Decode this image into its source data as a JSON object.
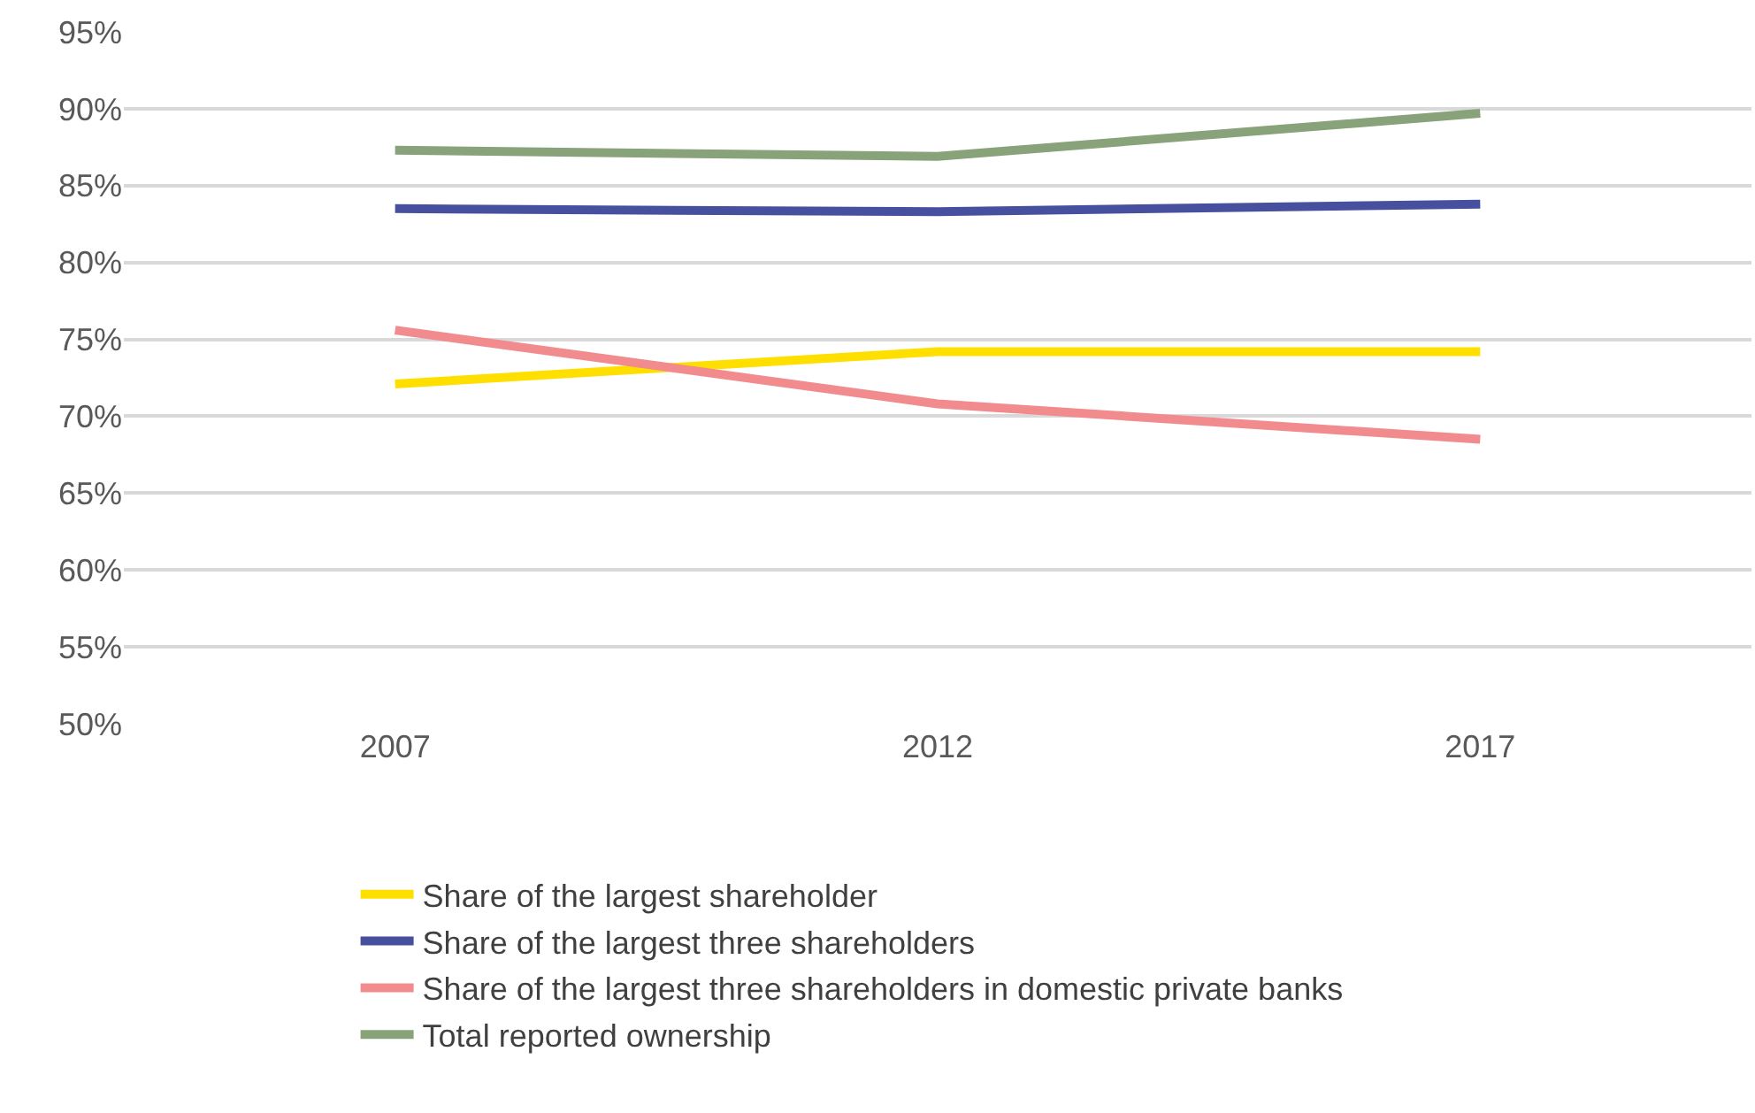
{
  "chart_data": {
    "type": "line",
    "categories": [
      "2007",
      "2012",
      "2017"
    ],
    "series": [
      {
        "name": "Share of the largest shareholder",
        "color": "#ffdf00",
        "values": [
          72.1,
          74.2,
          74.2
        ]
      },
      {
        "name": "Share of the largest three shareholders",
        "color": "#474f9f",
        "values": [
          83.5,
          83.3,
          83.8
        ]
      },
      {
        "name": "Share of the largest three shareholders in domestic private banks",
        "color": "#f28b8d",
        "values": [
          75.6,
          70.8,
          68.5
        ]
      },
      {
        "name": "Total reported ownership",
        "color": "#88a279",
        "values": [
          87.3,
          86.9,
          89.7
        ]
      }
    ],
    "ylim": [
      50,
      95
    ],
    "yticks": [
      {
        "value": 50,
        "label": "50%"
      },
      {
        "value": 55,
        "label": "55%"
      },
      {
        "value": 60,
        "label": "60%"
      },
      {
        "value": 65,
        "label": "65%"
      },
      {
        "value": 70,
        "label": "70%"
      },
      {
        "value": 75,
        "label": "75%"
      },
      {
        "value": 80,
        "label": "80%"
      },
      {
        "value": 85,
        "label": "85%"
      },
      {
        "value": 90,
        "label": "90%"
      },
      {
        "value": 95,
        "label": "95%"
      }
    ],
    "grid": "y",
    "legend": "bottom",
    "marker": "none",
    "line_style": "solid"
  }
}
